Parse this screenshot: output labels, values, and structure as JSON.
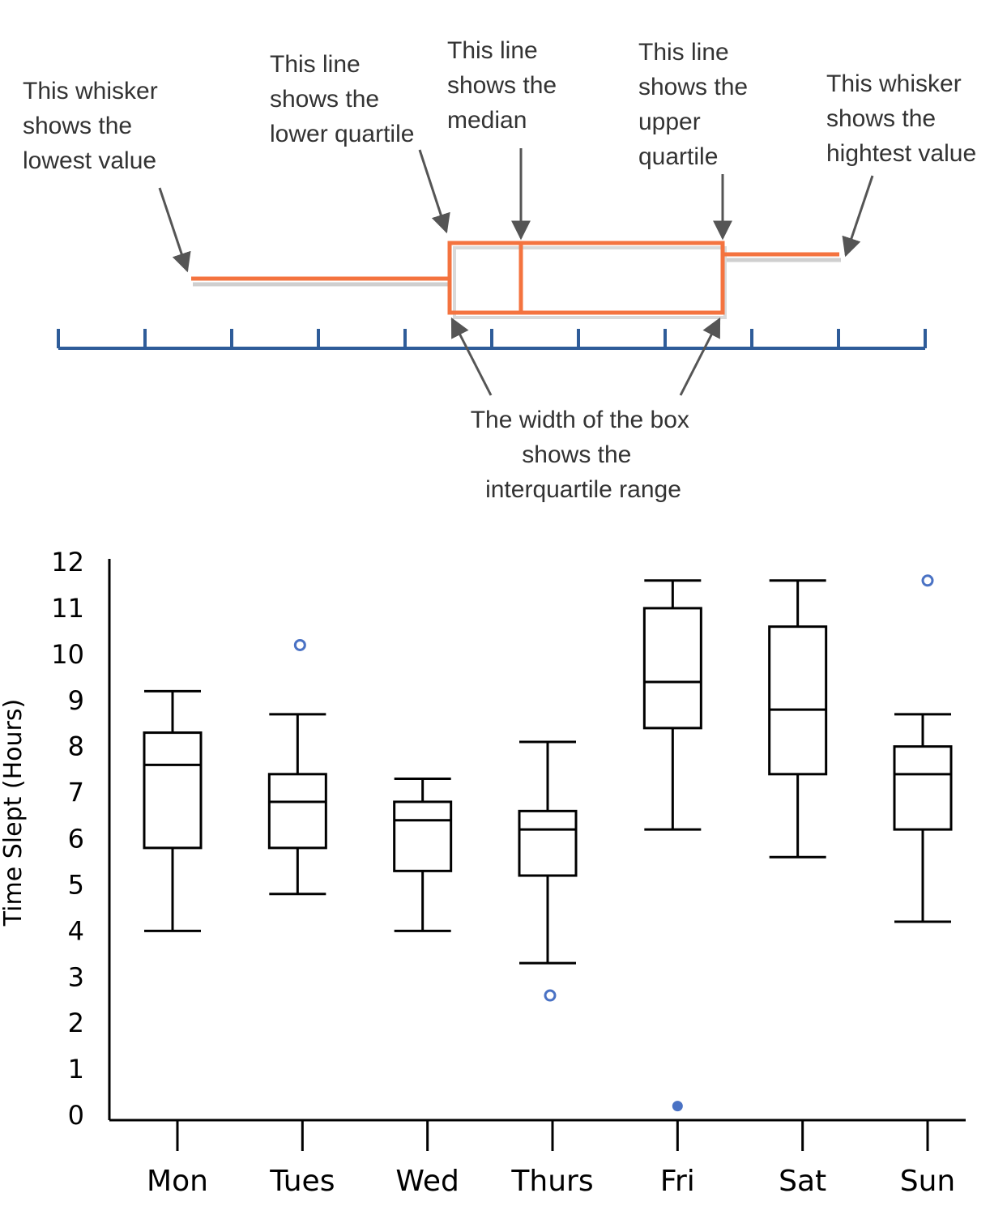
{
  "explainer": {
    "annotations": {
      "lowest": [
        "This whisker",
        "shows the",
        "lowest value"
      ],
      "lower_quartile": [
        "This line",
        "shows the",
        "lower quartile"
      ],
      "median": [
        "This line",
        "shows the",
        "median"
      ],
      "upper_quartile": [
        "This line",
        "shows the",
        "upper",
        "quartile"
      ],
      "highest": [
        "This whisker",
        "shows the",
        "hightest value"
      ],
      "iqr": [
        "The width of the box",
        "shows the",
        "interquartile range"
      ]
    },
    "colors": {
      "box": "#f4733f",
      "number_line": "#2e5c99",
      "arrow": "#555555",
      "shadow": "#cfcfcf"
    }
  },
  "chart_data": {
    "type": "boxplot",
    "title": "",
    "xlabel": "",
    "ylabel": "Time Slept (Hours)",
    "ylim": [
      0,
      12
    ],
    "yticks": [
      0,
      1,
      2,
      3,
      4,
      5,
      6,
      7,
      8,
      9,
      10,
      11,
      12
    ],
    "grid": false,
    "categories": [
      "Mon",
      "Tues",
      "Wed",
      "Thurs",
      "Fri",
      "Sat",
      "Sun"
    ],
    "boxes": [
      {
        "min": 4.0,
        "q1": 5.8,
        "median": 7.6,
        "q3": 8.3,
        "max": 9.2,
        "outliers": []
      },
      {
        "min": 4.8,
        "q1": 5.8,
        "median": 6.8,
        "q3": 7.4,
        "max": 8.7,
        "outliers": [
          10.2
        ]
      },
      {
        "min": 4.0,
        "q1": 5.3,
        "median": 6.4,
        "q3": 6.8,
        "max": 7.3,
        "outliers": []
      },
      {
        "min": 3.3,
        "q1": 5.2,
        "median": 6.2,
        "q3": 6.6,
        "max": 8.1,
        "outliers": [
          2.6
        ]
      },
      {
        "min": 6.2,
        "q1": 8.4,
        "median": 9.4,
        "q3": 11.0,
        "max": 11.6,
        "outliers": [
          0.2
        ]
      },
      {
        "min": 5.6,
        "q1": 7.4,
        "median": 8.8,
        "q3": 10.6,
        "max": 11.6,
        "outliers": []
      },
      {
        "min": 4.2,
        "q1": 6.2,
        "median": 7.4,
        "q3": 8.0,
        "max": 8.7,
        "outliers": [
          11.6
        ]
      }
    ],
    "colors": {
      "box": "#000000",
      "outlier": "#4a72c4"
    }
  }
}
